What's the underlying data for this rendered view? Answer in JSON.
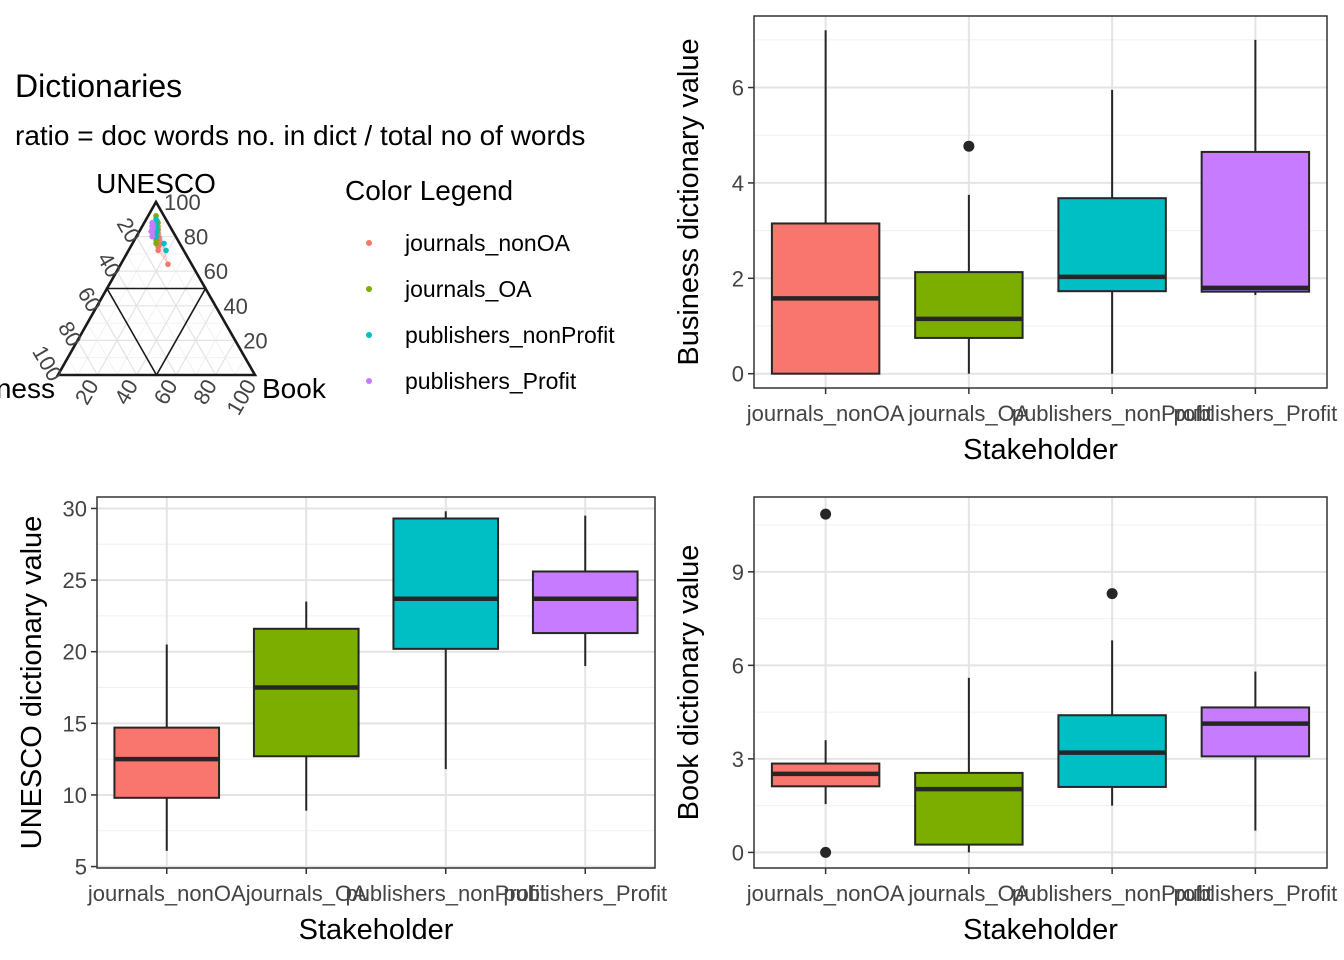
{
  "ternary": {
    "title": "Dictionaries",
    "subtitle": "ratio = doc words no. in dict / total no of words",
    "top_label": "UNESCO",
    "left_label": "Business",
    "right_label": "Book",
    "ticks": [
      "20",
      "40",
      "60",
      "80",
      "100"
    ],
    "legend_title": "Color Legend"
  },
  "groups": [
    {
      "name": "journals_nonOA",
      "color": "#F8766D"
    },
    {
      "name": "journals_OA",
      "color": "#7CAE00"
    },
    {
      "name": "publishers_nonProfit",
      "color": "#00BFC4"
    },
    {
      "name": "publishers_Profit",
      "color": "#C77CFF"
    }
  ],
  "chart_data": [
    {
      "type": "scatter",
      "id": "ternary",
      "title": "Dictionaries",
      "subtitle": "ratio = doc words no. in dict / total no of words",
      "axes": {
        "top": "UNESCO",
        "left": "Business",
        "right": "Book"
      },
      "range": [
        0,
        100
      ],
      "legend_title": "Color Legend",
      "legend_placement": "right",
      "series": [
        {
          "name": "journals_nonOA",
          "points": [
            [
              80,
              9,
              11
            ],
            [
              78,
              10,
              12
            ],
            [
              82,
              8,
              10
            ],
            [
              74,
              12,
              14
            ],
            [
              86,
              6,
              8
            ],
            [
              64,
              12,
              24
            ],
            [
              75,
              11,
              14
            ],
            [
              84,
              7,
              9
            ],
            [
              79,
              9,
              12
            ],
            [
              72,
              13,
              15
            ],
            [
              77,
              10,
              13
            ],
            [
              80,
              11,
              9
            ]
          ]
        },
        {
          "name": "journals_OA",
          "points": [
            [
              88,
              5,
              7
            ],
            [
              84,
              7,
              9
            ],
            [
              92,
              4,
              4
            ],
            [
              80,
              10,
              10
            ],
            [
              86,
              7,
              7
            ],
            [
              82,
              9,
              9
            ],
            [
              89,
              5,
              6
            ],
            [
              83,
              8,
              9
            ],
            [
              78,
              11,
              11
            ],
            [
              87,
              6,
              7
            ],
            [
              85,
              8,
              7
            ],
            [
              76,
              12,
              12
            ]
          ]
        },
        {
          "name": "publishers_nonProfit",
          "points": [
            [
              88,
              6,
              6
            ],
            [
              84,
              8,
              8
            ],
            [
              80,
              10,
              10
            ],
            [
              76,
              8,
              16
            ],
            [
              86,
              7,
              7
            ],
            [
              82,
              9,
              9
            ],
            [
              90,
              5,
              5
            ],
            [
              72,
              9,
              19
            ]
          ]
        },
        {
          "name": "publishers_Profit",
          "points": [
            [
              86,
              9,
              5
            ],
            [
              82,
              11,
              7
            ],
            [
              88,
              8,
              4
            ],
            [
              84,
              10,
              6
            ],
            [
              80,
              12,
              8
            ],
            [
              85,
              9,
              6
            ],
            [
              83,
              11,
              6
            ],
            [
              87,
              8,
              5
            ]
          ]
        }
      ]
    },
    {
      "type": "box",
      "id": "business",
      "xlabel": "Stakeholder",
      "ylabel": "Business dictionary value",
      "ylim": [
        -0.3,
        7.5
      ],
      "yticks": [
        0,
        2,
        4,
        6
      ],
      "grid": true,
      "categories": [
        "journals_nonOA",
        "journals_OA",
        "publishers_nonProfit",
        "publishers_Profit"
      ],
      "boxes": [
        {
          "min": 0,
          "q1": 0,
          "median": 1.58,
          "q3": 3.15,
          "max": 7.2,
          "outliers": []
        },
        {
          "min": 0,
          "q1": 0.75,
          "median": 1.15,
          "q3": 2.13,
          "max": 3.75,
          "outliers": [
            4.77
          ]
        },
        {
          "min": 0,
          "q1": 1.73,
          "median": 2.03,
          "q3": 3.68,
          "max": 5.95,
          "outliers": []
        },
        {
          "min": 1.65,
          "q1": 1.72,
          "median": 1.8,
          "q3": 4.65,
          "max": 7.0,
          "outliers": []
        }
      ]
    },
    {
      "type": "box",
      "id": "unesco",
      "xlabel": "Stakeholder",
      "ylabel": "UNESCO dictionary value",
      "ylim": [
        4.9,
        30.8
      ],
      "yticks": [
        5,
        10,
        15,
        20,
        25,
        30
      ],
      "grid": true,
      "categories": [
        "journals_nonOA",
        "journals_OA",
        "publishers_nonProfit",
        "publishers_Profit"
      ],
      "boxes": [
        {
          "min": 6.1,
          "q1": 9.8,
          "median": 12.5,
          "q3": 14.7,
          "max": 20.5,
          "outliers": []
        },
        {
          "min": 8.9,
          "q1": 12.7,
          "median": 17.5,
          "q3": 21.6,
          "max": 23.5,
          "outliers": []
        },
        {
          "min": 11.8,
          "q1": 20.2,
          "median": 23.7,
          "q3": 29.3,
          "max": 29.8,
          "outliers": []
        },
        {
          "min": 19.0,
          "q1": 21.3,
          "median": 23.7,
          "q3": 25.6,
          "max": 29.5,
          "outliers": []
        }
      ]
    },
    {
      "type": "box",
      "id": "book",
      "xlabel": "Stakeholder",
      "ylabel": "Book dictionary value",
      "ylim": [
        -0.5,
        11.4
      ],
      "yticks": [
        0,
        3,
        6,
        9
      ],
      "grid": true,
      "categories": [
        "journals_nonOA",
        "journals_OA",
        "publishers_nonProfit",
        "publishers_Profit"
      ],
      "boxes": [
        {
          "min": 1.55,
          "q1": 2.12,
          "median": 2.52,
          "q3": 2.85,
          "max": 3.6,
          "outliers": [
            10.85,
            0
          ]
        },
        {
          "min": 0,
          "q1": 0.25,
          "median": 2.03,
          "q3": 2.55,
          "max": 5.6,
          "outliers": []
        },
        {
          "min": 1.5,
          "q1": 2.1,
          "median": 3.2,
          "q3": 4.4,
          "max": 6.8,
          "outliers": [
            8.3
          ]
        },
        {
          "min": 0.7,
          "q1": 3.08,
          "median": 4.13,
          "q3": 4.65,
          "max": 5.8,
          "outliers": []
        }
      ]
    }
  ]
}
